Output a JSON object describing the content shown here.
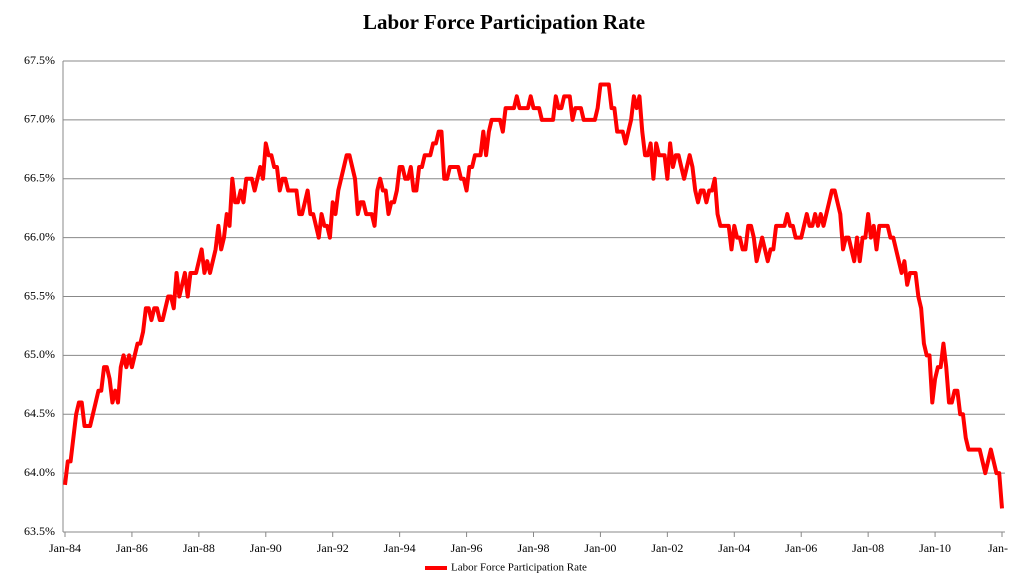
{
  "chart_data": {
    "type": "line",
    "title": "Labor Force Participation Rate",
    "categories": [
      "Jan-84",
      null,
      null,
      null,
      null,
      null,
      null,
      null,
      null,
      null,
      null,
      null,
      null,
      null,
      null,
      null,
      null,
      null,
      null,
      null,
      null,
      null,
      null,
      null,
      "Jan-86",
      null,
      null,
      null,
      null,
      null,
      null,
      null,
      null,
      null,
      null,
      null,
      null,
      null,
      null,
      null,
      null,
      null,
      null,
      null,
      null,
      null,
      null,
      null,
      "Jan-88",
      null,
      null,
      null,
      null,
      null,
      null,
      null,
      null,
      null,
      null,
      null,
      null,
      null,
      null,
      null,
      null,
      null,
      null,
      null,
      null,
      null,
      null,
      null,
      "Jan-90",
      null,
      null,
      null,
      null,
      null,
      null,
      null,
      null,
      null,
      null,
      null,
      null,
      null,
      null,
      null,
      null,
      null,
      null,
      null,
      null,
      null,
      null,
      null,
      "Jan-92",
      null,
      null,
      null,
      null,
      null,
      null,
      null,
      null,
      null,
      null,
      null,
      null,
      null,
      null,
      null,
      null,
      null,
      null,
      null,
      null,
      null,
      null,
      null,
      "Jan-94",
      null,
      null,
      null,
      null,
      null,
      null,
      null,
      null,
      null,
      null,
      null,
      null,
      null,
      null,
      null,
      null,
      null,
      null,
      null,
      null,
      null,
      null,
      null,
      "Jan-96",
      null,
      null,
      null,
      null,
      null,
      null,
      null,
      null,
      null,
      null,
      null,
      null,
      null,
      null,
      null,
      null,
      null,
      null,
      null,
      null,
      null,
      null,
      null,
      "Jan-98",
      null,
      null,
      null,
      null,
      null,
      null,
      null,
      null,
      null,
      null,
      null,
      null,
      null,
      null,
      null,
      null,
      null,
      null,
      null,
      null,
      null,
      null,
      null,
      "Jan-00",
      null,
      null,
      null,
      null,
      null,
      null,
      null,
      null,
      null,
      null,
      null,
      null,
      null,
      null,
      null,
      null,
      null,
      null,
      null,
      null,
      null,
      null,
      null,
      "Jan-02",
      null,
      null,
      null,
      null,
      null,
      null,
      null,
      null,
      null,
      null,
      null,
      null,
      null,
      null,
      null,
      null,
      null,
      null,
      null,
      null,
      null,
      null,
      null,
      "Jan-04",
      null,
      null,
      null,
      null,
      null,
      null,
      null,
      null,
      null,
      null,
      null,
      null,
      null,
      null,
      null,
      null,
      null,
      null,
      null,
      null,
      null,
      null,
      null,
      "Jan-06",
      null,
      null,
      null,
      null,
      null,
      null,
      null,
      null,
      null,
      null,
      null,
      null,
      null,
      null,
      null,
      null,
      null,
      null,
      null,
      null,
      null,
      null,
      null,
      "Jan-08",
      null,
      null,
      null,
      null,
      null,
      null,
      null,
      null,
      null,
      null,
      null,
      null,
      null,
      null,
      null,
      null,
      null,
      null,
      null,
      null,
      null,
      null,
      null,
      "Jan-10",
      null,
      null,
      null,
      null,
      null,
      null,
      null,
      null,
      null,
      null,
      null,
      null,
      null,
      null,
      null,
      null,
      null,
      null,
      null,
      null,
      null,
      null,
      null,
      "Jan-"
    ],
    "series": [
      {
        "name": "Labor Force Participation Rate",
        "color": "#ff0000",
        "values": [
          63.9,
          64.1,
          64.1,
          64.3,
          64.5,
          64.6,
          64.6,
          64.4,
          64.4,
          64.4,
          64.5,
          64.6,
          64.7,
          64.7,
          64.9,
          64.9,
          64.8,
          64.6,
          64.7,
          64.6,
          64.9,
          65.0,
          64.9,
          65.0,
          64.9,
          65.0,
          65.1,
          65.1,
          65.2,
          65.4,
          65.4,
          65.3,
          65.4,
          65.4,
          65.3,
          65.3,
          65.4,
          65.5,
          65.5,
          65.4,
          65.7,
          65.5,
          65.6,
          65.7,
          65.5,
          65.7,
          65.7,
          65.7,
          65.8,
          65.9,
          65.7,
          65.8,
          65.7,
          65.8,
          65.9,
          66.1,
          65.9,
          66.0,
          66.2,
          66.1,
          66.5,
          66.3,
          66.3,
          66.4,
          66.3,
          66.5,
          66.5,
          66.5,
          66.4,
          66.5,
          66.6,
          66.5,
          66.8,
          66.7,
          66.7,
          66.6,
          66.6,
          66.4,
          66.5,
          66.5,
          66.4,
          66.4,
          66.4,
          66.4,
          66.2,
          66.2,
          66.3,
          66.4,
          66.2,
          66.2,
          66.1,
          66.0,
          66.2,
          66.1,
          66.1,
          66.0,
          66.3,
          66.2,
          66.4,
          66.5,
          66.6,
          66.7,
          66.7,
          66.6,
          66.5,
          66.2,
          66.3,
          66.3,
          66.2,
          66.2,
          66.2,
          66.1,
          66.4,
          66.5,
          66.4,
          66.4,
          66.2,
          66.3,
          66.3,
          66.4,
          66.6,
          66.6,
          66.5,
          66.5,
          66.6,
          66.4,
          66.4,
          66.6,
          66.6,
          66.7,
          66.7,
          66.7,
          66.8,
          66.8,
          66.9,
          66.9,
          66.5,
          66.5,
          66.6,
          66.6,
          66.6,
          66.6,
          66.5,
          66.5,
          66.4,
          66.6,
          66.6,
          66.7,
          66.7,
          66.7,
          66.9,
          66.7,
          66.9,
          67.0,
          67.0,
          67.0,
          67.0,
          66.9,
          67.1,
          67.1,
          67.1,
          67.1,
          67.2,
          67.1,
          67.1,
          67.1,
          67.1,
          67.2,
          67.1,
          67.1,
          67.1,
          67.0,
          67.0,
          67.0,
          67.0,
          67.0,
          67.2,
          67.1,
          67.1,
          67.2,
          67.2,
          67.2,
          67.0,
          67.1,
          67.1,
          67.1,
          67.0,
          67.0,
          67.0,
          67.0,
          67.0,
          67.1,
          67.3,
          67.3,
          67.3,
          67.3,
          67.1,
          67.1,
          66.9,
          66.9,
          66.9,
          66.8,
          66.9,
          67.0,
          67.2,
          67.1,
          67.2,
          66.9,
          66.7,
          66.7,
          66.8,
          66.5,
          66.8,
          66.7,
          66.7,
          66.7,
          66.5,
          66.8,
          66.6,
          66.7,
          66.7,
          66.6,
          66.5,
          66.6,
          66.7,
          66.6,
          66.4,
          66.3,
          66.4,
          66.4,
          66.3,
          66.4,
          66.4,
          66.5,
          66.2,
          66.1,
          66.1,
          66.1,
          66.1,
          65.9,
          66.1,
          66.0,
          66.0,
          65.9,
          65.9,
          66.1,
          66.1,
          66.0,
          65.8,
          65.9,
          66.0,
          65.9,
          65.8,
          65.9,
          65.9,
          66.1,
          66.1,
          66.1,
          66.1,
          66.2,
          66.1,
          66.1,
          66.0,
          66.0,
          66.0,
          66.1,
          66.2,
          66.1,
          66.1,
          66.2,
          66.1,
          66.2,
          66.1,
          66.2,
          66.3,
          66.4,
          66.4,
          66.3,
          66.2,
          65.9,
          66.0,
          66.0,
          65.9,
          65.8,
          66.0,
          65.8,
          66.0,
          66.0,
          66.2,
          66.0,
          66.1,
          65.9,
          66.1,
          66.1,
          66.1,
          66.1,
          66.0,
          66.0,
          65.9,
          65.8,
          65.7,
          65.8,
          65.6,
          65.7,
          65.7,
          65.7,
          65.5,
          65.4,
          65.1,
          65.0,
          65.0,
          64.6,
          64.8,
          64.9,
          64.9,
          65.1,
          64.9,
          64.6,
          64.6,
          64.7,
          64.7,
          64.5,
          64.5,
          64.3,
          64.2,
          64.2,
          64.2,
          64.2,
          64.2,
          64.1,
          64.0,
          64.1,
          64.2,
          64.1,
          64.0,
          64.0,
          63.7
        ]
      }
    ],
    "ylim": [
      63.5,
      67.5
    ],
    "yticks": [
      {
        "value": 63.5,
        "label": "63.5%"
      },
      {
        "value": 64.0,
        "label": "64.0%"
      },
      {
        "value": 64.5,
        "label": "64.5%"
      },
      {
        "value": 65.0,
        "label": "65.0%"
      },
      {
        "value": 65.5,
        "label": "65.5%"
      },
      {
        "value": 66.0,
        "label": "66.0%"
      },
      {
        "value": 66.5,
        "label": "66.5%"
      },
      {
        "value": 67.0,
        "label": "67.0%"
      },
      {
        "value": 67.5,
        "label": "67.5%"
      }
    ],
    "grid": true,
    "legend": "bottom"
  }
}
